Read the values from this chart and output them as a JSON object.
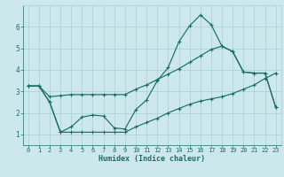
{
  "xlabel": "Humidex (Indice chaleur)",
  "bg_color": "#cce8ec",
  "grid_color": "#aacdd4",
  "line_color": "#1a6e6a",
  "xlim": [
    -0.5,
    23.5
  ],
  "ylim": [
    0.5,
    7.0
  ],
  "xticks": [
    0,
    1,
    2,
    3,
    4,
    5,
    6,
    7,
    8,
    9,
    10,
    11,
    12,
    13,
    14,
    15,
    16,
    17,
    18,
    19,
    20,
    21,
    22,
    23
  ],
  "yticks": [
    1,
    2,
    3,
    4,
    5,
    6
  ],
  "line1_x": [
    0,
    1,
    2,
    3,
    4,
    5,
    6,
    7,
    8,
    9,
    10,
    11,
    12,
    13,
    14,
    15,
    16,
    17,
    18,
    19,
    20,
    21,
    22,
    23
  ],
  "line1_y": [
    3.25,
    3.25,
    2.5,
    1.1,
    1.35,
    1.8,
    1.9,
    1.85,
    1.3,
    1.25,
    2.15,
    2.6,
    3.5,
    4.1,
    5.3,
    6.05,
    6.55,
    6.1,
    5.1,
    4.85,
    3.9,
    3.85,
    3.85,
    2.25
  ],
  "line2_x": [
    0,
    1,
    2,
    3,
    4,
    5,
    6,
    7,
    8,
    9,
    10,
    11,
    12,
    13,
    14,
    15,
    16,
    17,
    18,
    19,
    20,
    21,
    22,
    23
  ],
  "line2_y": [
    3.25,
    3.25,
    2.5,
    1.1,
    1.1,
    1.1,
    1.1,
    1.1,
    1.1,
    1.1,
    1.35,
    1.55,
    1.75,
    2.0,
    2.2,
    2.4,
    2.55,
    2.65,
    2.75,
    2.9,
    3.1,
    3.3,
    3.6,
    3.85
  ],
  "line3_x": [
    0,
    1,
    2,
    3,
    4,
    5,
    6,
    7,
    8,
    9,
    10,
    11,
    12,
    13,
    14,
    15,
    16,
    17,
    18,
    19,
    20,
    21,
    22,
    23
  ],
  "line3_y": [
    3.25,
    3.25,
    2.75,
    2.8,
    2.85,
    2.85,
    2.85,
    2.85,
    2.85,
    2.85,
    3.1,
    3.3,
    3.55,
    3.8,
    4.05,
    4.35,
    4.65,
    4.95,
    5.1,
    4.85,
    3.9,
    3.85,
    3.85,
    2.25
  ]
}
